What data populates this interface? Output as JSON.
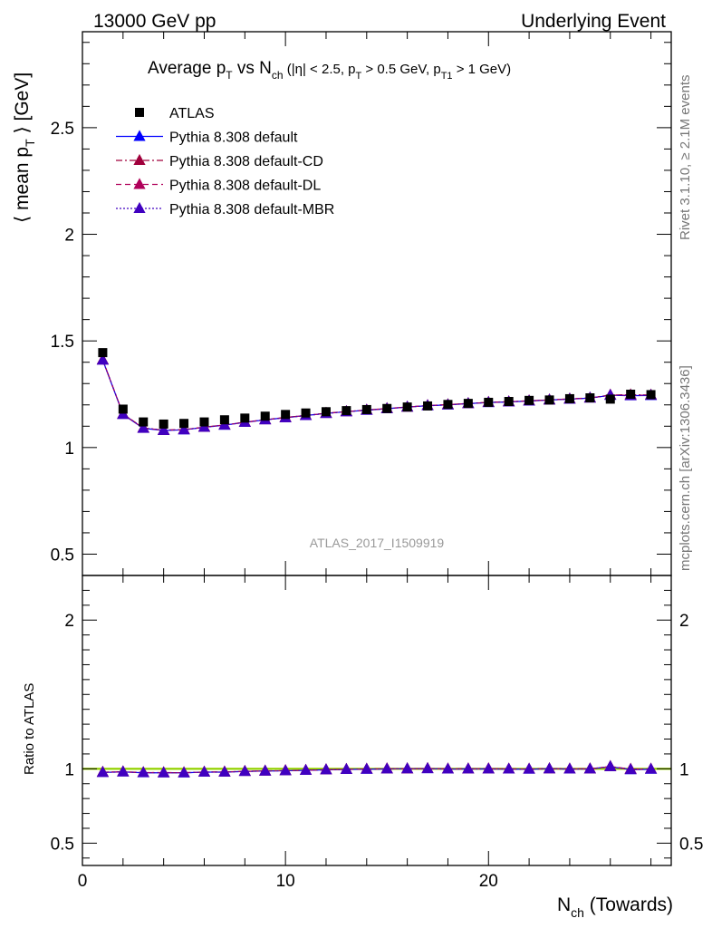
{
  "header": {
    "left": "13000 GeV pp",
    "right": "Underlying Event"
  },
  "side_labels": {
    "rivet": "Rivet 3.1.10, ≥ 2.1M events",
    "mcplots": "mcplots.cern.ch [arXiv:1306.3436]"
  },
  "chart_data": {
    "type": "scatter",
    "title": "Average pT vs Nch (|η| < 2.5, pT > 0.5 GeV, pT1 > 1 GeV)",
    "analysis_id": "ATLAS_2017_I1509919",
    "xlabel": "Nch (Towards)",
    "ylabel": "⟨ mean pT ⟩ [GeV]",
    "ratio_ylabel": "Ratio to ATLAS",
    "xlim": [
      0,
      29
    ],
    "ylim": [
      0.4,
      2.95
    ],
    "ratio_ylim": [
      0.35,
      2.3
    ],
    "x_ticks": [
      0,
      10,
      20
    ],
    "y_ticks": [
      0.5,
      1,
      1.5,
      2,
      2.5
    ],
    "ratio_y_ticks": [
      0.5,
      1,
      2
    ],
    "x": [
      1,
      2,
      3,
      4,
      5,
      6,
      7,
      8,
      9,
      10,
      11,
      12,
      13,
      14,
      15,
      16,
      17,
      18,
      19,
      20,
      21,
      22,
      23,
      24,
      25,
      26,
      27,
      28
    ],
    "reference": {
      "name": "ATLAS",
      "color": "#000000",
      "values": [
        1.445,
        1.18,
        1.12,
        1.11,
        1.113,
        1.12,
        1.13,
        1.138,
        1.147,
        1.155,
        1.162,
        1.168,
        1.173,
        1.178,
        1.183,
        1.19,
        1.195,
        1.202,
        1.207,
        1.212,
        1.216,
        1.221,
        1.223,
        1.229,
        1.233,
        1.227,
        1.25,
        1.248
      ]
    },
    "series": [
      {
        "name": "Pythia 8.308 default",
        "color": "#0000ff",
        "dash": "solid",
        "values": [
          1.41,
          1.155,
          1.09,
          1.08,
          1.083,
          1.095,
          1.105,
          1.118,
          1.13,
          1.14,
          1.15,
          1.16,
          1.168,
          1.175,
          1.182,
          1.19,
          1.196,
          1.2,
          1.206,
          1.211,
          1.214,
          1.218,
          1.223,
          1.227,
          1.232,
          1.245,
          1.243,
          1.244
        ]
      },
      {
        "name": "Pythia 8.308 default-CD",
        "color": "#a0003c",
        "dash": "dashdot",
        "values": [
          1.412,
          1.157,
          1.092,
          1.081,
          1.084,
          1.096,
          1.106,
          1.119,
          1.131,
          1.141,
          1.151,
          1.161,
          1.169,
          1.176,
          1.183,
          1.19,
          1.197,
          1.201,
          1.207,
          1.212,
          1.215,
          1.219,
          1.224,
          1.228,
          1.233,
          1.246,
          1.248,
          1.246
        ]
      },
      {
        "name": "Pythia 8.308 default-DL",
        "color": "#b0005a",
        "dash": "dashed",
        "values": [
          1.411,
          1.156,
          1.091,
          1.082,
          1.084,
          1.095,
          1.106,
          1.118,
          1.13,
          1.141,
          1.15,
          1.16,
          1.168,
          1.176,
          1.183,
          1.19,
          1.197,
          1.201,
          1.206,
          1.212,
          1.215,
          1.219,
          1.223,
          1.228,
          1.232,
          1.246,
          1.245,
          1.246
        ]
      },
      {
        "name": "Pythia 8.308 default-MBR",
        "color": "#4000c0",
        "dash": "dotted",
        "values": [
          1.41,
          1.156,
          1.091,
          1.081,
          1.083,
          1.095,
          1.105,
          1.118,
          1.13,
          1.14,
          1.15,
          1.16,
          1.168,
          1.175,
          1.182,
          1.19,
          1.196,
          1.2,
          1.206,
          1.211,
          1.214,
          1.218,
          1.223,
          1.227,
          1.232,
          1.245,
          1.244,
          1.245
        ]
      }
    ],
    "legend": "top-left",
    "band_color": "#c8f050"
  }
}
